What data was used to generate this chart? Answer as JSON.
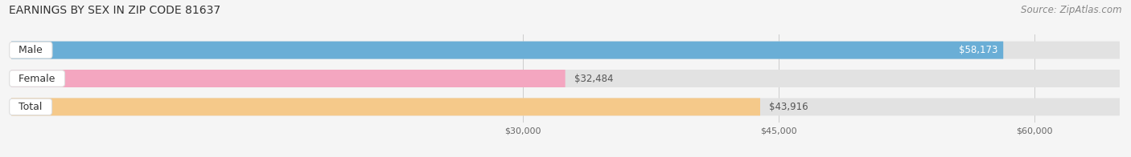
{
  "title": "EARNINGS BY SEX IN ZIP CODE 81637",
  "source": "Source: ZipAtlas.com",
  "categories": [
    "Male",
    "Female",
    "Total"
  ],
  "values": [
    58173,
    32484,
    43916
  ],
  "bar_colors": [
    "#6aaed6",
    "#f4a6c0",
    "#f5c98a"
  ],
  "label_inside": [
    true,
    false,
    false
  ],
  "xlim": [
    0,
    65000
  ],
  "xticks": [
    30000,
    45000,
    60000
  ],
  "xtick_labels": [
    "$30,000",
    "$45,000",
    "$60,000"
  ],
  "value_labels": [
    "$58,173",
    "$32,484",
    "$43,916"
  ],
  "bar_height": 0.62,
  "figsize": [
    14.06,
    1.96
  ],
  "dpi": 100,
  "background_color": "#f5f5f5",
  "bar_bg_color": "#e2e2e2",
  "title_fontsize": 10,
  "source_fontsize": 8.5,
  "bar_label_fontsize": 8.5,
  "category_fontsize": 9,
  "tick_fontsize": 8
}
